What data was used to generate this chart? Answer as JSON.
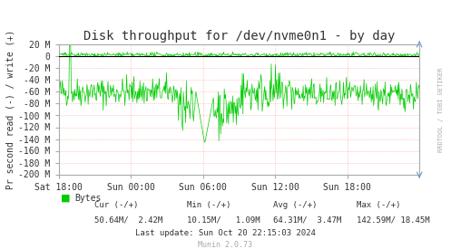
{
  "title": "Disk throughput for /dev/nvme0n1 - by day",
  "ylabel": "Pr second read (-) / write (+)",
  "ylim": [
    -200,
    20
  ],
  "yticks": [
    20,
    0,
    -20,
    -40,
    -60,
    -80,
    -100,
    -120,
    -140,
    -160,
    -180,
    -200
  ],
  "ytick_labels": [
    "20 M",
    "0",
    "-20 M",
    "-40 M",
    "-60 M",
    "-80 M",
    "-100 M",
    "-120 M",
    "-140 M",
    "-160 M",
    "-180 M",
    "-200 M"
  ],
  "bg_color": "#FFFFFF",
  "plot_bg_color": "#FFFFFF",
  "grid_color": "#FF9999",
  "line_color": "#00CC00",
  "border_color": "#AAAAAA",
  "right_label": "RRDTOOL / TOBI OETIKER",
  "footer_update": "Last update: Sun Oct 20 22:15:03 2024",
  "footer_munin": "Munin 2.0.73",
  "legend_label": "Bytes",
  "legend_color": "#00CC00",
  "x_tick_labels": [
    "Sat 18:00",
    "Sun 00:00",
    "Sun 06:00",
    "Sun 12:00",
    "Sun 18:00"
  ],
  "num_points": 600,
  "read_base": -60,
  "write_base": 3,
  "arrow_color": "#6699CC",
  "footer_cur_header": "Cur (-/+)",
  "footer_min_header": "Min (-/+)",
  "footer_avg_header": "Avg (-/+)",
  "footer_max_header": "Max (-/+)",
  "footer_cur_val": "50.64M/  2.42M",
  "footer_min_val": "10.15M/   1.09M",
  "footer_avg_val": "64.31M/  3.47M",
  "footer_max_val": "142.59M/ 18.45M"
}
